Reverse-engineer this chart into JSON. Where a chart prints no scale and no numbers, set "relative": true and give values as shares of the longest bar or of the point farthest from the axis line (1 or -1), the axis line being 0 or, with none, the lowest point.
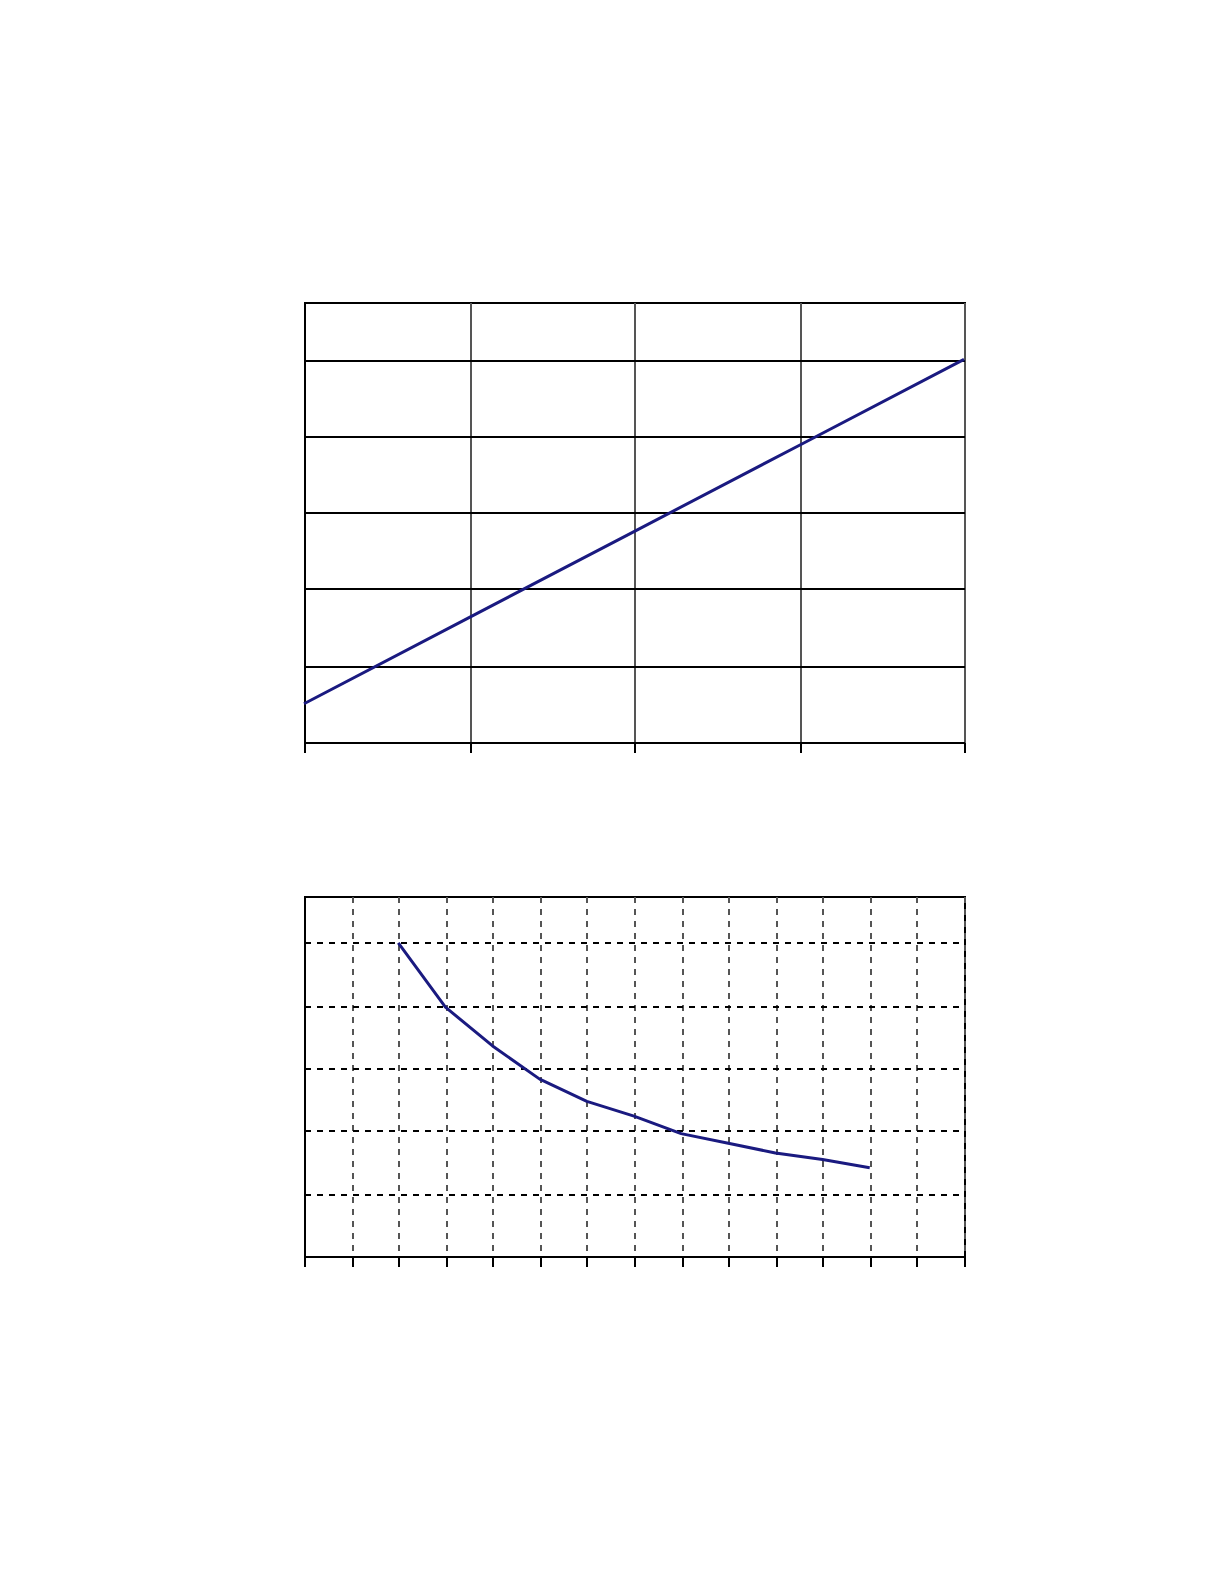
{
  "chart_data": [
    {
      "type": "line",
      "relative": true,
      "grid": true,
      "categories": [
        null,
        null,
        null,
        null,
        null
      ],
      "series": [
        {
          "color": "#1a1a80",
          "values": [
            0.1,
            0.325,
            0.55,
            0.775,
            1.0
          ]
        }
      ]
    },
    {
      "type": "line",
      "relative": true,
      "grid": true,
      "categories": [
        null,
        null,
        null,
        null,
        null,
        null,
        null,
        null,
        null,
        null,
        null,
        null,
        null,
        null,
        null
      ],
      "series": [
        {
          "color": "#1a1a80",
          "values": [
            null,
            null,
            1.0,
            0.795,
            0.671,
            0.565,
            0.494,
            0.447,
            0.391,
            0.36,
            0.329,
            0.308,
            0.282,
            null,
            null
          ]
        }
      ]
    }
  ]
}
